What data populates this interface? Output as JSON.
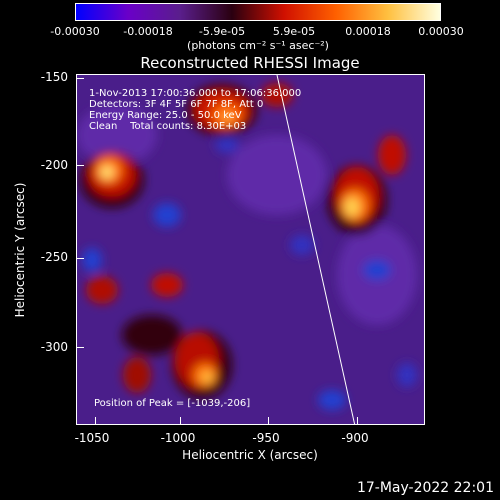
{
  "colorbar": {
    "ticks": [
      "-0.00030",
      "-0.00018",
      "-5.9e-05",
      "5.9e-05",
      "0.00018",
      "0.00030"
    ],
    "units": "(photons cm⁻² s⁻¹ asec⁻²)",
    "colors": [
      "#0000ff",
      "#6a00c8",
      "#5a1e8c",
      "#2a0010",
      "#d01000",
      "#ff6000",
      "#ffc040",
      "#ffffe0"
    ]
  },
  "title": "Reconstructed RHESSI Image",
  "annotations": {
    "line1": "1-Nov-2013 17:00:36.000 to 17:06:36.000",
    "line2": "Detectors: 3F 4F 5F 6F 7F 8F, Att 0",
    "line3": "Energy Range: 25.0 - 50.0 keV",
    "line4": "Clean    Total counts: 8.30E+03",
    "peak": "Position of Peak = [-1039,-206]"
  },
  "axes": {
    "xlabel": "Heliocentric X (arcsec)",
    "ylabel": "Heliocentric Y (arcsec)",
    "xticks": [
      "-1050",
      "-1000",
      "-950",
      "-900"
    ],
    "yticks": [
      "-150",
      "-200",
      "-250",
      "-300"
    ]
  },
  "timestamp": "17-May-2022 22:01"
}
